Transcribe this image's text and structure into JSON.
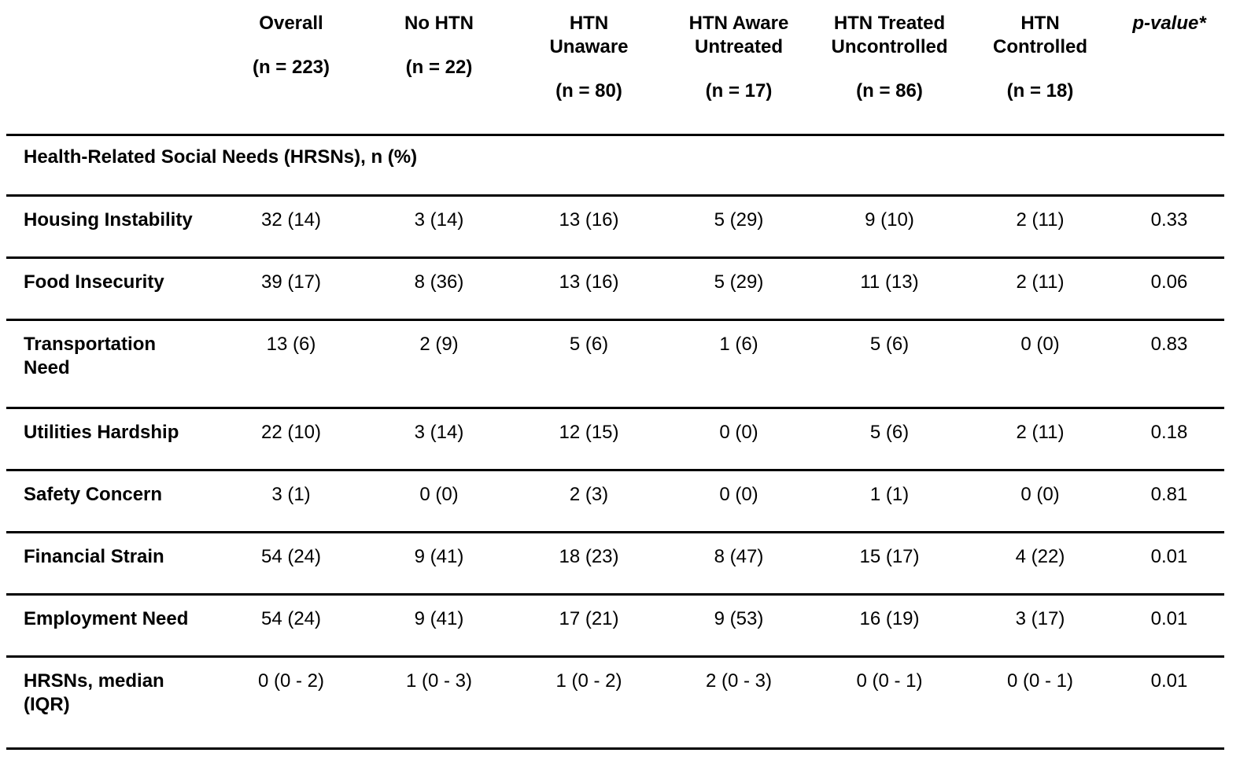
{
  "table": {
    "colors": {
      "background": "#ffffff",
      "text": "#000000",
      "rule": "#000000"
    },
    "columns": [
      {
        "title": "",
        "n": ""
      },
      {
        "title": "Overall",
        "n": "(n = 223)"
      },
      {
        "title": "No HTN",
        "n": "(n = 22)"
      },
      {
        "title": "HTN\nUnaware",
        "n": "(n = 80)"
      },
      {
        "title": "HTN Aware\nUntreated",
        "n": "(n = 17)"
      },
      {
        "title": "HTN Treated\nUncontrolled",
        "n": "(n = 86)"
      },
      {
        "title": "HTN\nControlled",
        "n": "(n = 18)"
      },
      {
        "title": "p-value*",
        "n": ""
      }
    ],
    "section_header": "Health-Related Social Needs (HRSNs), n (%)",
    "rows": [
      {
        "label": "Housing Instability",
        "values": [
          "32 (14)",
          "3 (14)",
          "13 (16)",
          "5 (29)",
          "9 (10)",
          "2 (11)",
          "0.33"
        ]
      },
      {
        "label": "Food Insecurity",
        "values": [
          "39 (17)",
          "8 (36)",
          "13 (16)",
          "5 (29)",
          "11 (13)",
          "2 (11)",
          "0.06"
        ]
      },
      {
        "label": "Transportation\nNeed",
        "values": [
          "13 (6)",
          "2 (9)",
          "5 (6)",
          "1 (6)",
          "5 (6)",
          "0 (0)",
          "0.83"
        ]
      },
      {
        "label": "Utilities Hardship",
        "values": [
          "22 (10)",
          "3 (14)",
          "12 (15)",
          "0 (0)",
          "5 (6)",
          "2 (11)",
          "0.18"
        ]
      },
      {
        "label": "Safety Concern",
        "values": [
          "3 (1)",
          "0 (0)",
          "2 (3)",
          "0 (0)",
          "1 (1)",
          "0 (0)",
          "0.81"
        ]
      },
      {
        "label": "Financial Strain",
        "values": [
          "54 (24)",
          "9 (41)",
          "18 (23)",
          "8 (47)",
          "15 (17)",
          "4 (22)",
          "0.01"
        ]
      },
      {
        "label": "Employment Need",
        "values": [
          "54 (24)",
          "9 (41)",
          "17 (21)",
          "9 (53)",
          "16 (19)",
          "3 (17)",
          "0.01"
        ]
      },
      {
        "label": "HRSNs, median\n(IQR)",
        "values": [
          "0 (0 - 2)",
          "1 (0 - 3)",
          "1 (0 - 2)",
          "2 (0 - 3)",
          "0 (0 - 1)",
          "0 (0 - 1)",
          "0.01"
        ]
      }
    ]
  }
}
